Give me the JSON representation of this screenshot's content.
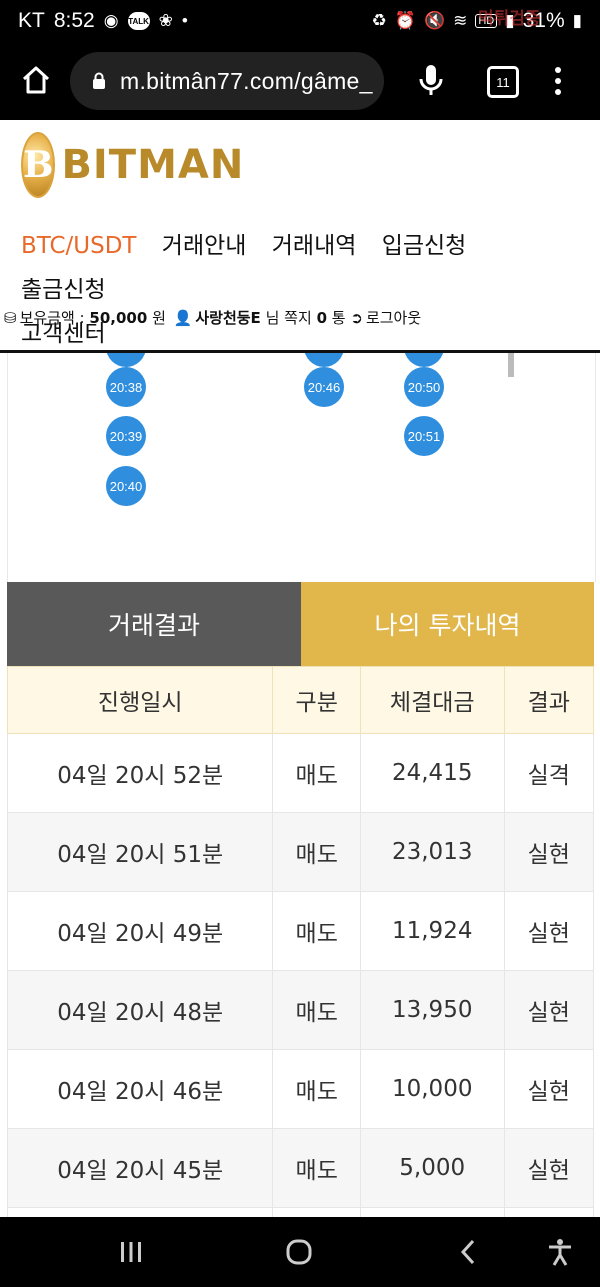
{
  "status_bar": {
    "carrier": "KT",
    "time": "8:52",
    "talk_badge": "TALK",
    "hd_badge": "HD",
    "battery": "31%",
    "watermark": "먹튀검증"
  },
  "browser": {
    "url": "m.bitmân77.com/gâme_",
    "tab_count": "11"
  },
  "site": {
    "logo_text": "BITMAN",
    "logo_coin_glyph": "B",
    "nav": [
      "BTC/USDT",
      "거래안내",
      "거래내역",
      "입금신청",
      "출금신청",
      "고객센터"
    ],
    "user": {
      "balance_label": "보유금액 :",
      "balance_value": "50,000",
      "balance_unit": "원",
      "username": "사랑천둥E",
      "honorific": "님",
      "message_label": "쪽지",
      "message_count": "0",
      "message_unit": "통",
      "logout_label": "로그아웃"
    }
  },
  "time_slots": {
    "col1": [
      "20:38",
      "20:39",
      "20:40"
    ],
    "col2": [
      "20:46"
    ],
    "col3": [
      "20:50",
      "20:51"
    ]
  },
  "tabs": {
    "trade_results": "거래결과",
    "my_investments": "나의 투자내역"
  },
  "table": {
    "headers": [
      "진행일시",
      "구분",
      "체결대금",
      "결과"
    ],
    "rows": [
      {
        "datetime": "04일 20시 52분",
        "type": "매도",
        "amount": "24,415",
        "result": "실격"
      },
      {
        "datetime": "04일 20시 51분",
        "type": "매도",
        "amount": "23,013",
        "result": "실현"
      },
      {
        "datetime": "04일 20시 49분",
        "type": "매도",
        "amount": "11,924",
        "result": "실현"
      },
      {
        "datetime": "04일 20시 48분",
        "type": "매도",
        "amount": "13,950",
        "result": "실현"
      },
      {
        "datetime": "04일 20시 46분",
        "type": "매도",
        "amount": "10,000",
        "result": "실현"
      },
      {
        "datetime": "04일 20시 45분",
        "type": "매도",
        "amount": "5,000",
        "result": "실현"
      }
    ]
  },
  "colors": {
    "accent_orange": "#e86a2a",
    "tab_gold": "#e1b64b",
    "tab_dark": "#595959",
    "slot_blue": "#2f8fde",
    "sell_blue": "#2d90d6",
    "win_red": "#d8212a"
  },
  "icons": [
    "home-icon",
    "lock-icon",
    "mic-icon",
    "tabs-icon",
    "more-vert-icon",
    "coins-icon",
    "user-icon",
    "logout-icon",
    "recent-apps-icon",
    "home-circle-icon",
    "back-icon",
    "accessibility-icon"
  ]
}
